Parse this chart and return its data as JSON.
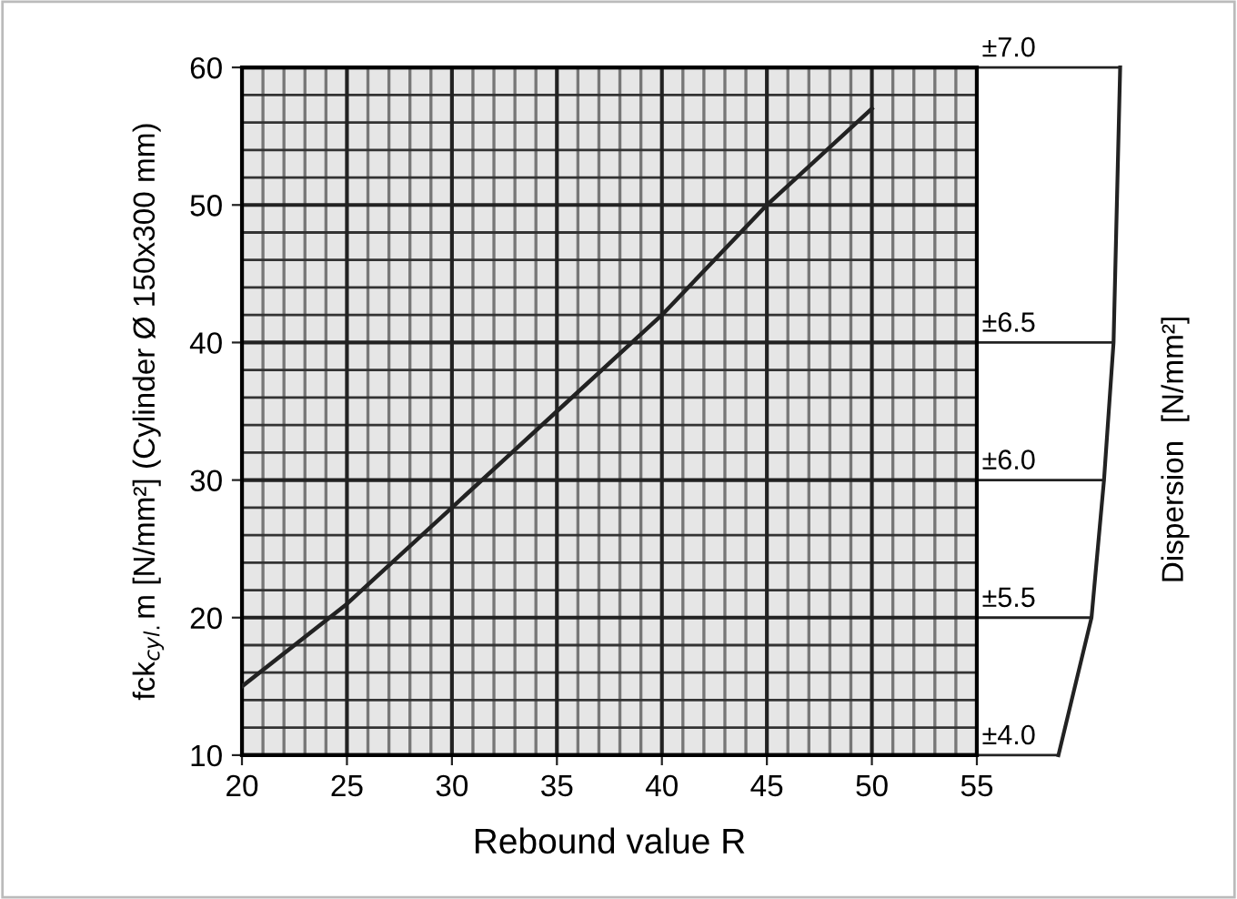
{
  "chart_data": {
    "type": "line",
    "xlabel": "Rebound value R",
    "ylabel": "fck$_{cyl.}$m [N/mm²] (Cylinder Ø 150x300 mm)",
    "x": [
      20,
      25,
      30,
      35,
      40,
      45,
      50
    ],
    "series": [
      {
        "color": "#222222",
        "values": [
          15,
          21,
          28,
          35,
          42,
          50,
          57
        ]
      }
    ],
    "xlim": [
      20,
      55
    ],
    "xticks": [
      20,
      25,
      30,
      35,
      40,
      45,
      50,
      55
    ],
    "ylim": [
      10,
      60
    ],
    "yticks": [
      10,
      20,
      30,
      40,
      50,
      60
    ],
    "annotations": [
      "±4.0",
      "±5.5",
      "±6.0",
      "±6.5",
      "±7.0",
      "Dispersion  [N/mm²]"
    ],
    "grid": true,
    "marker": "none",
    "line_style": "solid",
    "legend": false
  }
}
